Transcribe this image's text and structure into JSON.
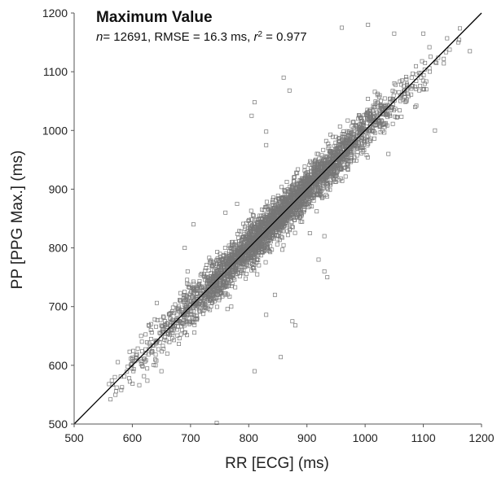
{
  "chart_data": {
    "type": "scatter",
    "title": "Maximum Value",
    "stats": {
      "n_label": "n",
      "n_value": "= 12691, RMSE = 16.3 ms, ",
      "r_label": "r",
      "r_exp": "2",
      "r_value": " = 0.977"
    },
    "xlabel": "RR [ECG] (ms)",
    "ylabel": "PP [PPG Max.] (ms)",
    "xlim": [
      500,
      1200
    ],
    "ylim": [
      500,
      1200
    ],
    "xticks": [
      500,
      600,
      700,
      800,
      900,
      1000,
      1100,
      1200
    ],
    "yticks": [
      500,
      600,
      700,
      800,
      900,
      1000,
      1100,
      1200
    ],
    "grid": false,
    "identity_line": {
      "x": [
        500,
        1200
      ],
      "y": [
        500,
        1200
      ]
    },
    "marker": "open-square",
    "marker_color": "#777777",
    "line_color": "#000000",
    "point_count_shown": 12691,
    "sample_points": [
      [
        745,
        502
      ],
      [
        810,
        590
      ],
      [
        855,
        614
      ],
      [
        830,
        686
      ],
      [
        845,
        720
      ],
      [
        880,
        668
      ],
      [
        875,
        675
      ],
      [
        830,
        998
      ],
      [
        810,
        1048
      ],
      [
        805,
        1025
      ],
      [
        860,
        1090
      ],
      [
        870,
        1068
      ],
      [
        830,
        975
      ],
      [
        905,
        825
      ],
      [
        930,
        820
      ],
      [
        935,
        750
      ],
      [
        930,
        760
      ],
      [
        920,
        780
      ],
      [
        960,
        1175
      ],
      [
        1005,
        1180
      ],
      [
        1050,
        1165
      ],
      [
        1100,
        1165
      ],
      [
        1160,
        1150
      ],
      [
        1180,
        1135
      ],
      [
        1080,
        1075
      ],
      [
        1105,
        1070
      ],
      [
        1120,
        1000
      ],
      [
        1035,
        1010
      ],
      [
        1040,
        960
      ],
      [
        1025,
        1060
      ],
      [
        780,
        875
      ],
      [
        760,
        860
      ],
      [
        705,
        840
      ],
      [
        690,
        800
      ],
      [
        695,
        760
      ],
      [
        755,
        740
      ],
      [
        770,
        700
      ],
      [
        650,
        590
      ],
      [
        570,
        580
      ],
      [
        560,
        568
      ],
      [
        600,
        610
      ],
      [
        640,
        600
      ],
      [
        615,
        650
      ],
      [
        660,
        620
      ]
    ],
    "dense_band": {
      "x_range": [
        560,
        1180
      ],
      "spread_ms": 18
    }
  }
}
